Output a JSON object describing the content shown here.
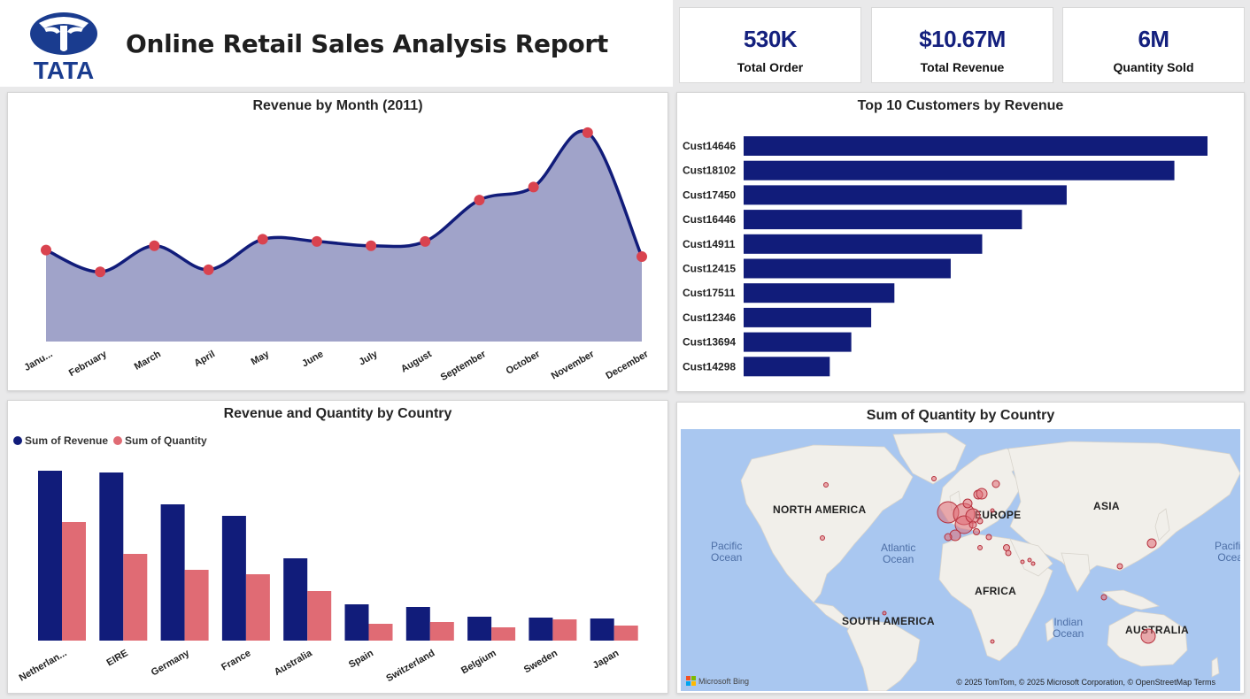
{
  "header": {
    "logo_text": "TATA",
    "title": "Online Retail Sales Analysis Report"
  },
  "kpis": [
    {
      "value": "530K",
      "label": "Total Order"
    },
    {
      "value": "$10.67M",
      "label": "Total Revenue"
    },
    {
      "value": "6M",
      "label": "Quantity Sold"
    }
  ],
  "revenue_by_month": {
    "title": "Revenue by Month (2011)",
    "chart_data": {
      "type": "area",
      "categories": [
        "Janu...",
        "February",
        "March",
        "April",
        "May",
        "June",
        "July",
        "August",
        "September",
        "October",
        "November",
        "December"
      ],
      "values": [
        0.42,
        0.32,
        0.44,
        0.33,
        0.47,
        0.46,
        0.44,
        0.46,
        0.65,
        0.71,
        0.96,
        0.39
      ],
      "ylim": [
        0,
        1
      ],
      "colors": {
        "line": "#111c7a",
        "fill": "#a0a3c9",
        "marker": "#d9434f"
      }
    }
  },
  "top_customers": {
    "title": "Top 10 Customers by Revenue",
    "chart_data": {
      "type": "bar",
      "orientation": "horizontal",
      "categories": [
        "Cust14646",
        "Cust18102",
        "Cust17450",
        "Cust16446",
        "Cust14911",
        "Cust12415",
        "Cust17511",
        "Cust12346",
        "Cust13694",
        "Cust14298"
      ],
      "values": [
        280,
        260,
        195,
        168,
        144,
        125,
        91,
        77,
        65,
        52
      ],
      "xlim": [
        0,
        280
      ],
      "colors": {
        "bar": "#111c7a"
      }
    }
  },
  "revenue_quantity_country": {
    "title": "Revenue and Quantity by Country",
    "chart_data": {
      "type": "bar",
      "categories": [
        "Netherlan...",
        "EIRE",
        "Germany",
        "France",
        "Australia",
        "Spain",
        "Switzerland",
        "Belgium",
        "Sweden",
        "Japan"
      ],
      "series": [
        {
          "name": "Sum of Revenue",
          "values": [
            192,
            190,
            154,
            141,
            93,
            41,
            38,
            27,
            26,
            25
          ],
          "color": "#111c7a"
        },
        {
          "name": "Sum of Quantity",
          "values": [
            134,
            98,
            80,
            75,
            56,
            19,
            21,
            15,
            24,
            17
          ],
          "color": "#e06b74"
        }
      ],
      "ylim": [
        0,
        200
      ]
    }
  },
  "map": {
    "title": "Sum of Quantity by Country",
    "labels": {
      "north_america": "NORTH AMERICA",
      "europe": "EUROPE",
      "asia": "ASIA",
      "africa": "AFRICA",
      "south_america": "SOUTH AMERICA",
      "australia": "AUSTRALIA"
    },
    "oceans": {
      "pacific_left_1": "Pacific",
      "pacific_left_2": "Ocean",
      "atlantic_1": "Atlantic",
      "atlantic_2": "Ocean",
      "indian_1": "Indian",
      "indian_2": "Ocean",
      "pacific_right_1": "Pacific",
      "pacific_right_2": "Ocea"
    },
    "bing": "Microsoft Bing",
    "credits": "© 2025 TomTom, © 2025 Microsoft Corporation, © OpenStreetMap   Terms"
  }
}
